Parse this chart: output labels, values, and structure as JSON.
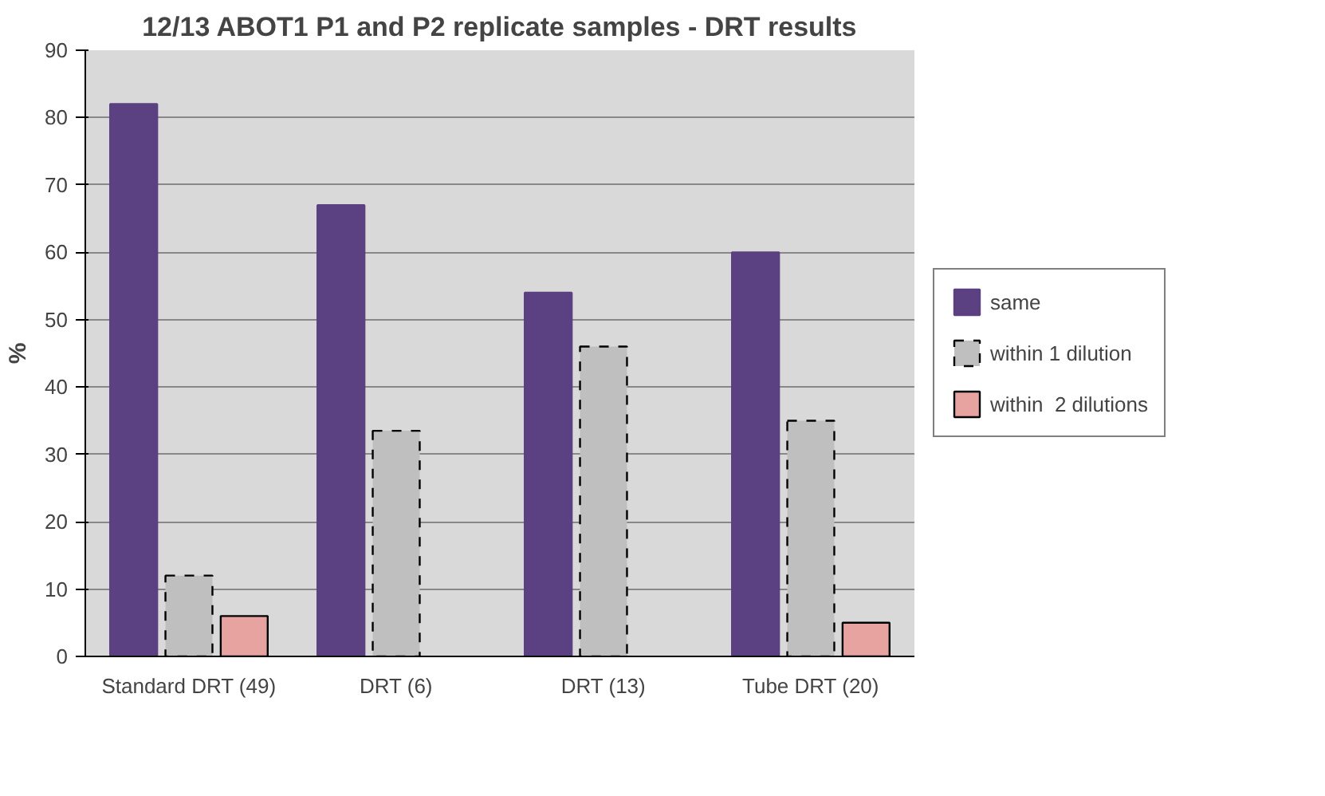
{
  "chart_data": {
    "type": "bar",
    "title": "12/13 ABOT1 P1 and P2 replicate samples - DRT results",
    "ylabel": "%",
    "categories": [
      "Standard DRT (49)",
      "DRT (6)",
      "DRT (13)",
      "Tube DRT (20)"
    ],
    "series": [
      {
        "name": "same",
        "color": "#5b4181",
        "values": [
          82,
          67,
          54,
          60
        ]
      },
      {
        "name": "within 1 dilution",
        "color": "#bfbfbf",
        "values": [
          12,
          33.5,
          46,
          35
        ],
        "line_style": "dashed"
      },
      {
        "name": "within  2 dilutions",
        "color": "#e6a3a0",
        "values": [
          6,
          null,
          null,
          5
        ]
      }
    ],
    "ylim": [
      0,
      90
    ],
    "yticks": [
      0,
      10,
      20,
      30,
      40,
      50,
      60,
      70,
      80,
      90
    ],
    "grid": "y",
    "legend": "right"
  }
}
